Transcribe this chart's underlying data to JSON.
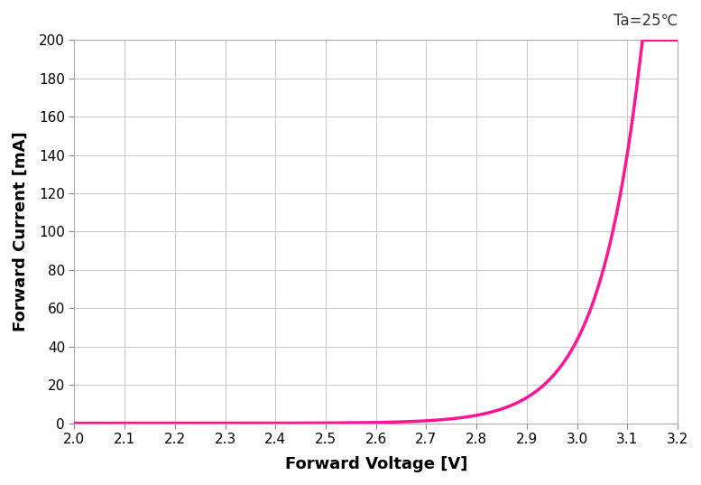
{
  "title_annotation": "Ta=25℃",
  "xlabel": "Forward Voltage [V]",
  "ylabel": "Forward Current [mA]",
  "xlim": [
    2.0,
    3.2
  ],
  "ylim": [
    0,
    200
  ],
  "xticks": [
    2.0,
    2.1,
    2.2,
    2.3,
    2.4,
    2.5,
    2.6,
    2.7,
    2.8,
    2.9,
    3.0,
    3.1,
    3.2
  ],
  "yticks": [
    0,
    20,
    40,
    60,
    80,
    100,
    120,
    140,
    160,
    180,
    200
  ],
  "curve_color": "#FF1493",
  "curve_linewidth": 2.5,
  "grid_color": "#C8C8C8",
  "background_color": "#FFFFFF",
  "annotation_fontsize": 12,
  "axis_label_fontsize": 13,
  "tick_fontsize": 11,
  "diode_I0": 1e-07,
  "diode_V0": 2.35,
  "diode_eta": 0.085
}
